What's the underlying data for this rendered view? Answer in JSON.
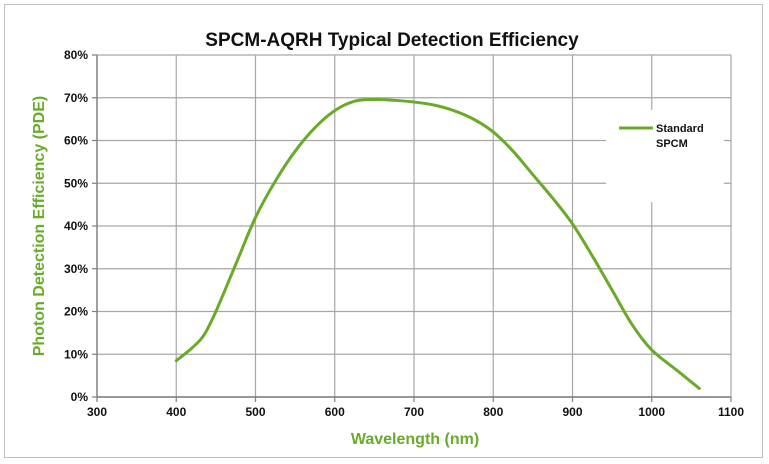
{
  "chart_data": {
    "type": "line",
    "title": "SPCM-AQRH Typical Detection Efficiency",
    "xlabel": "Wavelength (nm)",
    "ylabel": "Photon Detection Efficiency (PDE)",
    "xlim": [
      300,
      1100
    ],
    "ylim": [
      0,
      80
    ],
    "x_ticks": [
      300,
      400,
      500,
      600,
      700,
      800,
      900,
      1000,
      1100
    ],
    "y_ticks": [
      0,
      10,
      20,
      30,
      40,
      50,
      60,
      70,
      80
    ],
    "y_tick_labels": [
      "0%",
      "10%",
      "20%",
      "30%",
      "40%",
      "50%",
      "60%",
      "70%",
      "80%"
    ],
    "grid": true,
    "legend_position": "right",
    "accent_color": "#6aaa2a",
    "axis_title_color": "#6aaa2a",
    "series": [
      {
        "name": "Standard SPCM",
        "legend_lines": [
          "Standard",
          "SPCM"
        ],
        "color": "#6aaa2a",
        "x": [
          400,
          420,
          435,
          450,
          475,
          500,
          525,
          550,
          575,
          600,
          625,
          650,
          675,
          700,
          725,
          750,
          775,
          800,
          825,
          850,
          875,
          900,
          925,
          950,
          975,
          1000,
          1030,
          1060
        ],
        "y": [
          8.5,
          11.5,
          14.5,
          20,
          31,
          42,
          50.5,
          57.5,
          63,
          67,
          69.2,
          69.6,
          69.4,
          69,
          68.3,
          67,
          65,
          62,
          57.5,
          52,
          46.5,
          40.5,
          33,
          25,
          17,
          11,
          6.5,
          2
        ]
      }
    ]
  }
}
